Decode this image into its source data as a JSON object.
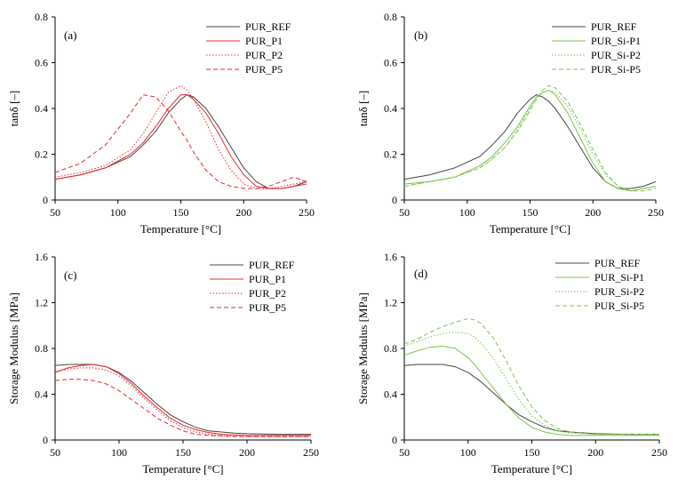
{
  "colors": {
    "ref": "#444444",
    "red": "#e8282d",
    "green": "#7cc24e",
    "axis": "#000000"
  },
  "chart_data": [
    {
      "type": "line",
      "panel_label": "(a)",
      "xlabel": "Temperature [°C]",
      "ylabel": "tanδ [–]",
      "xlim": [
        50,
        250
      ],
      "ylim": [
        0,
        0.8
      ],
      "xticks": [
        "50",
        "100",
        "150",
        "200",
        "250"
      ],
      "yticks": [
        "0",
        "0.2",
        "0.4",
        "0.6",
        "0.8"
      ],
      "legend_position": "top-right",
      "x": [
        50,
        70,
        90,
        110,
        120,
        130,
        140,
        150,
        155,
        160,
        170,
        180,
        190,
        200,
        210,
        220,
        230,
        240,
        250
      ],
      "series": [
        {
          "name": "PUR_REF",
          "color": "ref",
          "dash": "solid",
          "values": [
            0.09,
            0.11,
            0.14,
            0.19,
            0.24,
            0.3,
            0.38,
            0.44,
            0.46,
            0.45,
            0.4,
            0.32,
            0.23,
            0.14,
            0.08,
            0.05,
            0.05,
            0.06,
            0.08
          ]
        },
        {
          "name": "PUR_P1",
          "color": "red",
          "dash": "solid",
          "values": [
            0.09,
            0.11,
            0.14,
            0.2,
            0.25,
            0.32,
            0.4,
            0.46,
            0.46,
            0.44,
            0.38,
            0.29,
            0.19,
            0.11,
            0.06,
            0.05,
            0.05,
            0.06,
            0.07
          ]
        },
        {
          "name": "PUR_P2",
          "color": "red",
          "dash": "dot",
          "values": [
            0.1,
            0.12,
            0.15,
            0.22,
            0.29,
            0.38,
            0.47,
            0.5,
            0.48,
            0.44,
            0.34,
            0.22,
            0.13,
            0.07,
            0.05,
            0.05,
            0.06,
            0.07,
            0.08
          ]
        },
        {
          "name": "PUR_P5",
          "color": "red",
          "dash": "dash",
          "values": [
            0.12,
            0.16,
            0.24,
            0.38,
            0.46,
            0.45,
            0.39,
            0.3,
            0.26,
            0.21,
            0.13,
            0.08,
            0.06,
            0.05,
            0.05,
            0.06,
            0.08,
            0.1,
            0.08
          ]
        }
      ]
    },
    {
      "type": "line",
      "panel_label": "(b)",
      "xlabel": "Temperature [°C]",
      "ylabel": "tanδ [–]",
      "xlim": [
        50,
        250
      ],
      "ylim": [
        0,
        0.8
      ],
      "xticks": [
        "50",
        "100",
        "150",
        "200",
        "250"
      ],
      "yticks": [
        "0",
        "0.2",
        "0.4",
        "0.6",
        "0.8"
      ],
      "legend_position": "top-right",
      "x": [
        50,
        70,
        90,
        110,
        120,
        130,
        140,
        150,
        155,
        160,
        165,
        170,
        180,
        190,
        200,
        210,
        220,
        230,
        240,
        250
      ],
      "series": [
        {
          "name": "PUR_REF",
          "color": "ref",
          "dash": "solid",
          "values": [
            0.09,
            0.11,
            0.14,
            0.19,
            0.24,
            0.3,
            0.38,
            0.44,
            0.46,
            0.45,
            0.43,
            0.4,
            0.32,
            0.23,
            0.14,
            0.08,
            0.05,
            0.05,
            0.06,
            0.08
          ]
        },
        {
          "name": "PUR_Si-P1",
          "color": "green",
          "dash": "solid",
          "values": [
            0.07,
            0.08,
            0.1,
            0.15,
            0.19,
            0.25,
            0.32,
            0.41,
            0.45,
            0.47,
            0.48,
            0.46,
            0.38,
            0.27,
            0.16,
            0.08,
            0.05,
            0.04,
            0.05,
            0.06
          ]
        },
        {
          "name": "PUR_Si-P2",
          "color": "green",
          "dash": "dot",
          "values": [
            0.06,
            0.08,
            0.1,
            0.14,
            0.18,
            0.23,
            0.31,
            0.4,
            0.44,
            0.47,
            0.48,
            0.47,
            0.41,
            0.31,
            0.2,
            0.11,
            0.06,
            0.04,
            0.05,
            0.06
          ]
        },
        {
          "name": "PUR_Si-P5",
          "color": "green",
          "dash": "dash",
          "values": [
            0.06,
            0.08,
            0.1,
            0.14,
            0.18,
            0.23,
            0.3,
            0.39,
            0.44,
            0.48,
            0.5,
            0.49,
            0.43,
            0.33,
            0.22,
            0.12,
            0.06,
            0.04,
            0.04,
            0.05
          ]
        }
      ]
    },
    {
      "type": "line",
      "panel_label": "(c)",
      "xlabel": "Temperature [°C]",
      "ylabel": "Storage Modulus [MPa]",
      "xlim": [
        50,
        250
      ],
      "ylim": [
        0,
        1.6
      ],
      "xticks": [
        "50",
        "100",
        "150",
        "200",
        "250"
      ],
      "yticks": [
        "0",
        "0.4",
        "0.8",
        "1.2",
        "1.6"
      ],
      "legend_position": "top-right",
      "x": [
        50,
        60,
        70,
        80,
        90,
        100,
        110,
        120,
        130,
        140,
        150,
        160,
        170,
        180,
        190,
        200,
        225,
        250
      ],
      "series": [
        {
          "name": "PUR_REF",
          "color": "ref",
          "dash": "solid",
          "values": [
            0.65,
            0.66,
            0.66,
            0.66,
            0.64,
            0.59,
            0.51,
            0.41,
            0.31,
            0.22,
            0.16,
            0.11,
            0.08,
            0.07,
            0.06,
            0.055,
            0.05,
            0.05
          ]
        },
        {
          "name": "PUR_P1",
          "color": "red",
          "dash": "solid",
          "values": [
            0.59,
            0.63,
            0.65,
            0.66,
            0.64,
            0.58,
            0.49,
            0.38,
            0.28,
            0.19,
            0.13,
            0.09,
            0.065,
            0.05,
            0.045,
            0.04,
            0.04,
            0.04
          ]
        },
        {
          "name": "PUR_P2",
          "color": "red",
          "dash": "dot",
          "values": [
            0.6,
            0.62,
            0.63,
            0.63,
            0.61,
            0.56,
            0.47,
            0.36,
            0.26,
            0.17,
            0.11,
            0.07,
            0.05,
            0.04,
            0.035,
            0.03,
            0.03,
            0.03
          ]
        },
        {
          "name": "PUR_P5",
          "color": "red",
          "dash": "dash",
          "values": [
            0.52,
            0.53,
            0.53,
            0.52,
            0.49,
            0.43,
            0.35,
            0.27,
            0.19,
            0.13,
            0.08,
            0.05,
            0.04,
            0.035,
            0.03,
            0.03,
            0.03,
            0.03
          ]
        }
      ]
    },
    {
      "type": "line",
      "panel_label": "(d)",
      "xlabel": "Temperature [°C]",
      "ylabel": "Storage Modulus [MPa]",
      "xlim": [
        50,
        250
      ],
      "ylim": [
        0,
        1.6
      ],
      "xticks": [
        "50",
        "100",
        "150",
        "200",
        "250"
      ],
      "yticks": [
        "0",
        "0.4",
        "0.8",
        "1.2",
        "1.6"
      ],
      "legend_position": "top-right",
      "x": [
        50,
        60,
        70,
        80,
        90,
        100,
        105,
        110,
        120,
        130,
        140,
        150,
        160,
        170,
        180,
        200,
        225,
        250
      ],
      "series": [
        {
          "name": "PUR_REF",
          "color": "ref",
          "dash": "solid",
          "values": [
            0.65,
            0.66,
            0.66,
            0.66,
            0.64,
            0.59,
            0.55,
            0.51,
            0.41,
            0.31,
            0.22,
            0.16,
            0.11,
            0.08,
            0.07,
            0.055,
            0.05,
            0.05
          ]
        },
        {
          "name": "PUR_Si-P1",
          "color": "green",
          "dash": "solid",
          "values": [
            0.74,
            0.78,
            0.81,
            0.82,
            0.8,
            0.72,
            0.66,
            0.59,
            0.45,
            0.31,
            0.19,
            0.11,
            0.07,
            0.05,
            0.04,
            0.04,
            0.04,
            0.04
          ]
        },
        {
          "name": "PUR_Si-P2",
          "color": "green",
          "dash": "dot",
          "values": [
            0.82,
            0.86,
            0.9,
            0.93,
            0.94,
            0.93,
            0.9,
            0.85,
            0.71,
            0.53,
            0.35,
            0.21,
            0.13,
            0.08,
            0.06,
            0.05,
            0.05,
            0.05
          ]
        },
        {
          "name": "PUR_Si-P5",
          "color": "green",
          "dash": "dash",
          "values": [
            0.84,
            0.88,
            0.94,
            0.99,
            1.03,
            1.06,
            1.05,
            1.02,
            0.89,
            0.69,
            0.47,
            0.29,
            0.17,
            0.1,
            0.07,
            0.05,
            0.05,
            0.05
          ]
        }
      ]
    }
  ]
}
